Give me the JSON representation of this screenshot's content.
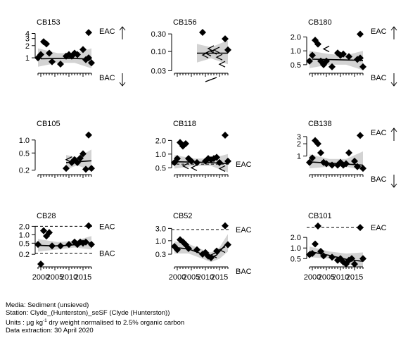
{
  "caption": {
    "media": "Media: Sediment (unsieved)",
    "station": "Station: Clyde_(Hunterston)_seSF (Clyde (Hunterston))",
    "units_pre": "Units : µg kg",
    "units_sup": "-1",
    "units_post": " dry weight normalised to 2.5% organic carbon",
    "extraction": "Data extraction: 30 April 2020"
  },
  "chart_data": [
    {
      "type": "scatter",
      "title": "CB153",
      "scale": "log",
      "ylim": [
        0.45,
        4.6
      ],
      "yticks": [
        {
          "v": 1,
          "label": "1"
        },
        {
          "v": 2,
          "label": "2"
        },
        {
          "v": 3,
          "label": "3"
        },
        {
          "v": 4,
          "label": "4"
        }
      ],
      "points": [
        [
          1999,
          1.0
        ],
        [
          2000,
          1.2
        ],
        [
          2001,
          2.5
        ],
        [
          2002,
          2.2
        ],
        [
          2003,
          1.3
        ],
        [
          2004,
          0.8
        ],
        [
          2007,
          0.7
        ],
        [
          2009,
          1.1
        ],
        [
          2010,
          1.2
        ],
        [
          2011,
          1.1
        ],
        [
          2012,
          1.3
        ],
        [
          2013,
          1.2
        ],
        [
          2015,
          1.6
        ],
        [
          2016,
          0.9
        ],
        [
          2017,
          1.0
        ],
        [
          2018,
          0.75
        ]
      ],
      "trend": [
        [
          2000,
          0.95
        ],
        [
          2010,
          0.97
        ],
        [
          2018,
          0.93
        ]
      ],
      "band_upper": [
        [
          1999,
          1.7
        ],
        [
          2006,
          1.3
        ],
        [
          2012,
          1.3
        ],
        [
          2018,
          1.7
        ]
      ],
      "band_lower": [
        [
          1999,
          0.6
        ],
        [
          2006,
          0.75
        ],
        [
          2012,
          0.75
        ],
        [
          2018,
          0.55
        ]
      ],
      "eac": {
        "label": "EAC",
        "arrow": "up",
        "type": "offscale_up",
        "marker": [
          2017,
          4.2
        ]
      },
      "bac": {
        "label": "BAC",
        "arrow": "down",
        "type": "offscale_down"
      }
    },
    {
      "type": "scatter",
      "title": "CB156",
      "scale": "log",
      "ylim": [
        0.028,
        0.36
      ],
      "yticks": [
        {
          "v": 0.03,
          "label": "0.03"
        },
        {
          "v": 0.1,
          "label": "0.10"
        },
        {
          "v": 0.3,
          "label": "0.30"
        }
      ],
      "points": [
        [
          2009,
          0.33
        ],
        [
          2017,
          0.22
        ],
        [
          2018,
          0.11
        ]
      ],
      "lt_points": [
        [
          2010,
          0.08
        ],
        [
          2011,
          0.09
        ],
        [
          2012,
          0.12
        ],
        [
          2013,
          0.1
        ],
        [
          2014,
          0.11
        ],
        [
          2015,
          0.07
        ],
        [
          2016,
          0.045
        ]
      ],
      "trend": [
        [
          2007,
          0.09
        ],
        [
          2018,
          0.09
        ]
      ],
      "band_upper": [
        [
          2007,
          0.16
        ],
        [
          2012,
          0.13
        ],
        [
          2018,
          0.2
        ]
      ],
      "band_lower": [
        [
          2007,
          0.05
        ],
        [
          2012,
          0.065
        ],
        [
          2018,
          0.045
        ]
      ],
      "extra_dash": [
        [
          2010,
          0.02
        ],
        [
          2014,
          0.026
        ]
      ]
    },
    {
      "type": "scatter",
      "title": "CB180",
      "scale": "log",
      "ylim": [
        0.35,
        2.7
      ],
      "yticks": [
        {
          "v": 0.5,
          "label": "0.5"
        },
        {
          "v": 1.0,
          "label": "1.0"
        },
        {
          "v": 2.0,
          "label": "2.0"
        }
      ],
      "points": [
        [
          1999,
          0.6
        ],
        [
          2000,
          0.8
        ],
        [
          2001,
          1.7
        ],
        [
          2002,
          1.4
        ],
        [
          2003,
          0.6
        ],
        [
          2004,
          0.5
        ],
        [
          2005,
          0.6
        ],
        [
          2007,
          0.45
        ],
        [
          2009,
          0.9
        ],
        [
          2010,
          0.8
        ],
        [
          2011,
          0.85
        ],
        [
          2013,
          0.75
        ],
        [
          2016,
          0.65
        ],
        [
          2017,
          0.7
        ],
        [
          2018,
          0.45
        ]
      ],
      "lt_points": [
        [
          2005,
          1.1
        ]
      ],
      "trend": [
        [
          2000,
          0.66
        ],
        [
          2010,
          0.64
        ],
        [
          2018,
          0.62
        ]
      ],
      "band_upper": [
        [
          1999,
          1.0
        ],
        [
          2006,
          0.85
        ],
        [
          2012,
          0.8
        ],
        [
          2018,
          1.0
        ]
      ],
      "band_lower": [
        [
          1999,
          0.42
        ],
        [
          2006,
          0.5
        ],
        [
          2012,
          0.5
        ],
        [
          2018,
          0.38
        ]
      ],
      "eac": {
        "label": "EAC",
        "arrow": "up",
        "type": "offscale_up",
        "marker": [
          2017,
          2.3
        ]
      },
      "bac": {
        "label": "BAC",
        "arrow": "down",
        "type": "offscale_down"
      }
    },
    {
      "type": "scatter",
      "title": "CB105",
      "scale": "log",
      "ylim": [
        0.17,
        1.5
      ],
      "yticks": [
        {
          "v": 0.2,
          "label": "0.2"
        },
        {
          "v": 0.5,
          "label": "0.5"
        },
        {
          "v": 1.0,
          "label": "1.0"
        }
      ],
      "points": [
        [
          2009,
          0.22
        ],
        [
          2011,
          0.3
        ],
        [
          2012,
          0.35
        ],
        [
          2013,
          0.3
        ],
        [
          2014,
          0.38
        ],
        [
          2015,
          0.48
        ],
        [
          2016,
          0.21
        ],
        [
          2017,
          1.3
        ],
        [
          2018,
          0.22
        ]
      ],
      "lt_points": [
        [
          2010,
          0.35
        ]
      ],
      "trend": [
        [
          2009,
          0.3
        ],
        [
          2018,
          0.33
        ]
      ],
      "band_upper": [
        [
          2009,
          0.45
        ],
        [
          2013,
          0.4
        ],
        [
          2018,
          0.6
        ]
      ],
      "band_lower": [
        [
          2009,
          0.21
        ],
        [
          2013,
          0.26
        ],
        [
          2018,
          0.19
        ]
      ]
    },
    {
      "type": "scatter",
      "title": "CB118",
      "scale": "log",
      "ylim": [
        0.38,
        3.0
      ],
      "yticks": [
        {
          "v": 0.5,
          "label": "0.5"
        },
        {
          "v": 1.0,
          "label": "1.0"
        },
        {
          "v": 2.0,
          "label": "2.0"
        }
      ],
      "points": [
        [
          1999,
          0.65
        ],
        [
          2000,
          0.8
        ],
        [
          2001,
          1.8
        ],
        [
          2002,
          1.5
        ],
        [
          2003,
          1.7
        ],
        [
          2004,
          0.8
        ],
        [
          2005,
          0.7
        ],
        [
          2007,
          0.65
        ],
        [
          2010,
          0.7
        ],
        [
          2011,
          0.8
        ],
        [
          2012,
          0.75
        ],
        [
          2013,
          0.8
        ],
        [
          2014,
          0.85
        ],
        [
          2015,
          0.65
        ],
        [
          2017,
          2.6
        ],
        [
          2018,
          0.7
        ]
      ],
      "lt_points": [
        [
          2003,
          0.55
        ],
        [
          2006,
          0.5
        ],
        [
          2016,
          0.48
        ]
      ],
      "trend": [
        [
          1999,
          0.68
        ],
        [
          2010,
          0.66
        ],
        [
          2018,
          0.62
        ]
      ],
      "band_upper": [
        [
          1999,
          0.95
        ],
        [
          2006,
          0.8
        ],
        [
          2012,
          0.8
        ],
        [
          2018,
          1.0
        ]
      ],
      "band_lower": [
        [
          1999,
          0.48
        ],
        [
          2006,
          0.55
        ],
        [
          2012,
          0.55
        ],
        [
          2018,
          0.4
        ]
      ],
      "eac": {
        "label": "EAC",
        "type": "line",
        "value": 0.6
      }
    },
    {
      "type": "scatter",
      "title": "CB138",
      "scale": "log",
      "ylim": [
        0.38,
        3.8
      ],
      "yticks": [
        {
          "v": 1,
          "label": "1"
        },
        {
          "v": 2,
          "label": "2"
        },
        {
          "v": 3,
          "label": "3"
        }
      ],
      "points": [
        [
          1999,
          0.7
        ],
        [
          2000,
          0.9
        ],
        [
          2001,
          2.4
        ],
        [
          2002,
          2.0
        ],
        [
          2003,
          1.2
        ],
        [
          2004,
          0.7
        ],
        [
          2005,
          0.65
        ],
        [
          2007,
          0.6
        ],
        [
          2009,
          0.6
        ],
        [
          2010,
          0.7
        ],
        [
          2011,
          0.6
        ],
        [
          2012,
          0.65
        ],
        [
          2013,
          1.2
        ],
        [
          2015,
          0.75
        ],
        [
          2016,
          0.55
        ],
        [
          2018,
          0.5
        ]
      ],
      "trend": [
        [
          1999,
          0.72
        ],
        [
          2010,
          0.65
        ],
        [
          2018,
          0.6
        ]
      ],
      "band_upper": [
        [
          1999,
          1.1
        ],
        [
          2006,
          0.85
        ],
        [
          2012,
          0.85
        ],
        [
          2018,
          1.3
        ]
      ],
      "band_lower": [
        [
          1999,
          0.5
        ],
        [
          2006,
          0.55
        ],
        [
          2012,
          0.55
        ],
        [
          2018,
          0.45
        ]
      ],
      "eac": {
        "label": "EAC",
        "arrow": "up",
        "type": "offscale_up",
        "marker": [
          2017,
          3.2
        ]
      },
      "bac": {
        "label": "BAC",
        "arrow": "down",
        "type": "offscale_down"
      }
    },
    {
      "type": "scatter",
      "title": "CB28",
      "scale": "log",
      "ylim": [
        0.08,
        2.3
      ],
      "yticks": [
        {
          "v": 0.2,
          "label": "0.2"
        },
        {
          "v": 0.5,
          "label": "0.5"
        },
        {
          "v": 1.0,
          "label": "1.0"
        },
        {
          "v": 2.0,
          "label": "2.0"
        }
      ],
      "points": [
        [
          1999,
          0.45
        ],
        [
          2000,
          0.09
        ],
        [
          2001,
          1.4
        ],
        [
          2002,
          0.9
        ],
        [
          2003,
          1.2
        ],
        [
          2004,
          0.4
        ],
        [
          2007,
          0.4
        ],
        [
          2010,
          0.45
        ],
        [
          2012,
          0.55
        ],
        [
          2013,
          0.45
        ],
        [
          2014,
          0.55
        ],
        [
          2015,
          0.5
        ],
        [
          2016,
          0.55
        ],
        [
          2017,
          2.1
        ],
        [
          2018,
          0.45
        ]
      ],
      "trend": [
        [
          1999,
          0.42
        ],
        [
          2005,
          0.4
        ],
        [
          2010,
          0.42
        ],
        [
          2018,
          0.52
        ]
      ],
      "band_upper": [
        [
          1999,
          0.7
        ],
        [
          2006,
          0.55
        ],
        [
          2012,
          0.6
        ],
        [
          2018,
          0.9
        ]
      ],
      "band_lower": [
        [
          1999,
          0.25
        ],
        [
          2006,
          0.3
        ],
        [
          2012,
          0.35
        ],
        [
          2018,
          0.3
        ]
      ],
      "eac": {
        "label": "EAC",
        "type": "line",
        "value": 2.0
      },
      "bac": {
        "label": "BAC",
        "type": "line",
        "value": 0.22
      }
    },
    {
      "type": "scatter",
      "title": "CB52",
      "scale": "log",
      "ylim": [
        0.11,
        4.2
      ],
      "yticks": [
        {
          "v": 0.3,
          "label": "0.3"
        },
        {
          "v": 1.0,
          "label": "1.0"
        },
        {
          "v": 3.0,
          "label": "3.0"
        }
      ],
      "points": [
        [
          1999,
          0.6
        ],
        [
          2000,
          0.45
        ],
        [
          2001,
          1.1
        ],
        [
          2002,
          0.9
        ],
        [
          2003,
          0.7
        ],
        [
          2004,
          0.5
        ],
        [
          2007,
          0.45
        ],
        [
          2009,
          0.3
        ],
        [
          2010,
          0.35
        ],
        [
          2011,
          0.25
        ],
        [
          2012,
          0.22
        ],
        [
          2014,
          0.4
        ],
        [
          2017,
          3.8
        ],
        [
          2018,
          0.7
        ]
      ],
      "lt_points": [
        [
          2013,
          0.28
        ],
        [
          2016,
          0.45
        ]
      ],
      "trend": [
        [
          1999,
          0.55
        ],
        [
          2004,
          0.48
        ],
        [
          2009,
          0.3
        ],
        [
          2012,
          0.22
        ],
        [
          2014,
          0.28
        ],
        [
          2018,
          0.9
        ]
      ],
      "band_upper": [
        [
          1999,
          0.95
        ],
        [
          2004,
          0.75
        ],
        [
          2009,
          0.45
        ],
        [
          2012,
          0.35
        ],
        [
          2015,
          0.55
        ],
        [
          2018,
          1.8
        ]
      ],
      "band_lower": [
        [
          1999,
          0.32
        ],
        [
          2004,
          0.32
        ],
        [
          2009,
          0.2
        ],
        [
          2012,
          0.15
        ],
        [
          2015,
          0.2
        ],
        [
          2018,
          0.38
        ]
      ],
      "eac": {
        "label": "EAC",
        "type": "line",
        "value": 2.7
      },
      "bac": {
        "label": "BAC",
        "type": "offscale_down"
      }
    },
    {
      "type": "scatter",
      "title": "CB101",
      "scale": "log",
      "ylim": [
        0.32,
        4.6
      ],
      "yticks": [
        {
          "v": 0.5,
          "label": "0.5"
        },
        {
          "v": 1.0,
          "label": "1.0"
        },
        {
          "v": 2.0,
          "label": "2.0"
        }
      ],
      "points": [
        [
          1999,
          0.65
        ],
        [
          2000,
          0.7
        ],
        [
          2001,
          1.3
        ],
        [
          2002,
          4.2
        ],
        [
          2003,
          0.8
        ],
        [
          2004,
          0.6
        ],
        [
          2007,
          0.55
        ],
        [
          2009,
          0.45
        ],
        [
          2010,
          0.5
        ],
        [
          2011,
          0.4
        ],
        [
          2012,
          0.35
        ],
        [
          2013,
          0.45
        ],
        [
          2014,
          0.5
        ],
        [
          2015,
          0.35
        ],
        [
          2017,
          3.8
        ],
        [
          2018,
          0.5
        ]
      ],
      "trend": [
        [
          1999,
          0.8
        ],
        [
          2006,
          0.62
        ],
        [
          2012,
          0.48
        ],
        [
          2018,
          0.42
        ]
      ],
      "band_upper": [
        [
          1999,
          1.1
        ],
        [
          2006,
          0.8
        ],
        [
          2012,
          0.7
        ],
        [
          2018,
          0.75
        ]
      ],
      "band_lower": [
        [
          1999,
          0.55
        ],
        [
          2006,
          0.5
        ],
        [
          2012,
          0.36
        ],
        [
          2018,
          0.28
        ]
      ],
      "eac": {
        "label": "EAC",
        "type": "line",
        "value": 3.8
      }
    }
  ],
  "x_axis": {
    "range": [
      1998,
      2019
    ],
    "ticks": [
      2000,
      2005,
      2010,
      2015
    ],
    "tick_labels": [
      "2000",
      "2005",
      "2010",
      "2015"
    ],
    "minor_step": 1
  }
}
